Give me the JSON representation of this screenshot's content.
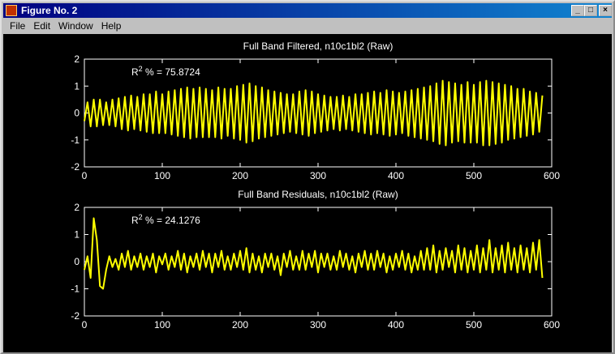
{
  "window": {
    "title": "Figure No. 2",
    "menu": [
      "File",
      "Edit",
      "Window",
      "Help"
    ]
  },
  "chart_data": [
    {
      "type": "line",
      "title": "Full Band Filtered, n10c1bl2 (Raw)",
      "annotation": {
        "base": "R",
        "sup": "2",
        "text": " % = 75.8724"
      },
      "color": "#ffff00",
      "xlim": [
        0,
        600
      ],
      "xticks": [
        0,
        100,
        200,
        300,
        400,
        500,
        600
      ],
      "ylim": [
        -2,
        2
      ],
      "yticks": [
        -2,
        -1,
        0,
        1,
        2
      ],
      "x": [
        0,
        4,
        8,
        12,
        16,
        20,
        24,
        28,
        32,
        36,
        40,
        44,
        48,
        52,
        56,
        60,
        64,
        68,
        72,
        76,
        80,
        84,
        88,
        92,
        96,
        100,
        104,
        108,
        112,
        116,
        120,
        124,
        128,
        132,
        136,
        140,
        144,
        148,
        152,
        156,
        160,
        164,
        168,
        172,
        176,
        180,
        184,
        188,
        192,
        196,
        200,
        204,
        208,
        212,
        216,
        220,
        224,
        228,
        232,
        236,
        240,
        244,
        248,
        252,
        256,
        260,
        264,
        268,
        272,
        276,
        280,
        284,
        288,
        292,
        296,
        300,
        304,
        308,
        312,
        316,
        320,
        324,
        328,
        332,
        336,
        340,
        344,
        348,
        352,
        356,
        360,
        364,
        368,
        372,
        376,
        380,
        384,
        388,
        392,
        396,
        400,
        404,
        408,
        412,
        416,
        420,
        424,
        428,
        432,
        436,
        440,
        444,
        448,
        452,
        456,
        460,
        464,
        468,
        472,
        476,
        480,
        484,
        488,
        492,
        496,
        500,
        504,
        508,
        512,
        516,
        520,
        524,
        528,
        532,
        536,
        540,
        544,
        548,
        552,
        556,
        560,
        564,
        568,
        572,
        576,
        580,
        584,
        588
      ],
      "values": [
        -0.3,
        0.4,
        -0.5,
        0.5,
        -0.5,
        0.5,
        -0.45,
        0.4,
        -0.45,
        0.5,
        -0.5,
        0.55,
        -0.6,
        0.6,
        -0.65,
        0.65,
        -0.6,
        0.6,
        -0.65,
        0.7,
        -0.7,
        0.7,
        -0.75,
        0.8,
        -0.75,
        0.7,
        -0.75,
        0.8,
        -0.8,
        0.85,
        -0.85,
        0.9,
        -0.9,
        0.95,
        -0.95,
        0.9,
        -0.9,
        0.95,
        -0.9,
        0.9,
        -0.9,
        0.85,
        -0.9,
        0.95,
        -0.95,
        0.9,
        -0.85,
        0.9,
        -0.95,
        1.0,
        -1.0,
        1.05,
        -1.1,
        1.1,
        -1.05,
        1.0,
        -0.95,
        0.95,
        -0.9,
        0.85,
        -0.85,
        0.8,
        -0.8,
        0.75,
        -0.75,
        0.7,
        -0.7,
        0.7,
        -0.75,
        0.8,
        -0.8,
        0.85,
        -0.85,
        0.8,
        -0.75,
        0.7,
        -0.7,
        0.65,
        -0.65,
        0.6,
        -0.6,
        0.6,
        -0.65,
        0.65,
        -0.6,
        0.6,
        -0.65,
        0.7,
        -0.7,
        0.7,
        -0.75,
        0.75,
        -0.8,
        0.8,
        -0.75,
        0.75,
        -0.8,
        0.85,
        -0.85,
        0.8,
        -0.8,
        0.75,
        -0.75,
        0.8,
        -0.85,
        0.85,
        -0.9,
        0.9,
        -0.95,
        0.95,
        -1.0,
        1.0,
        -1.05,
        1.1,
        -1.15,
        1.2,
        -1.2,
        1.15,
        -1.1,
        1.1,
        -1.05,
        1.05,
        -1.1,
        1.15,
        -1.1,
        1.05,
        -1.1,
        1.15,
        -1.2,
        1.2,
        -1.2,
        1.15,
        -1.15,
        1.1,
        -1.1,
        1.05,
        -1.0,
        1.0,
        -0.95,
        0.9,
        -0.9,
        0.9,
        -0.85,
        0.8,
        -0.8,
        0.75,
        -0.7,
        0.65
      ]
    },
    {
      "type": "line",
      "title": "Full Band Residuals, n10c1bl2 (Raw)",
      "annotation": {
        "base": "R",
        "sup": "2",
        "text": " % = 24.1276"
      },
      "color": "#ffff00",
      "xlim": [
        0,
        600
      ],
      "xticks": [
        0,
        100,
        200,
        300,
        400,
        500,
        600
      ],
      "ylim": [
        -2,
        2
      ],
      "yticks": [
        -2,
        -1,
        0,
        1,
        2
      ],
      "x": [
        0,
        4,
        8,
        12,
        16,
        20,
        24,
        28,
        32,
        36,
        40,
        44,
        48,
        52,
        56,
        60,
        64,
        68,
        72,
        76,
        80,
        84,
        88,
        92,
        96,
        100,
        104,
        108,
        112,
        116,
        120,
        124,
        128,
        132,
        136,
        140,
        144,
        148,
        152,
        156,
        160,
        164,
        168,
        172,
        176,
        180,
        184,
        188,
        192,
        196,
        200,
        204,
        208,
        212,
        216,
        220,
        224,
        228,
        232,
        236,
        240,
        244,
        248,
        252,
        256,
        260,
        264,
        268,
        272,
        276,
        280,
        284,
        288,
        292,
        296,
        300,
        304,
        308,
        312,
        316,
        320,
        324,
        328,
        332,
        336,
        340,
        344,
        348,
        352,
        356,
        360,
        364,
        368,
        372,
        376,
        380,
        384,
        388,
        392,
        396,
        400,
        404,
        408,
        412,
        416,
        420,
        424,
        428,
        432,
        436,
        440,
        444,
        448,
        452,
        456,
        460,
        464,
        468,
        472,
        476,
        480,
        484,
        488,
        492,
        496,
        500,
        504,
        508,
        512,
        516,
        520,
        524,
        528,
        532,
        536,
        540,
        544,
        548,
        552,
        556,
        560,
        564,
        568,
        572,
        576,
        580,
        584,
        588
      ],
      "values": [
        -0.3,
        0.2,
        -0.6,
        1.6,
        0.8,
        -0.9,
        -1.0,
        -0.3,
        0.2,
        -0.2,
        0.1,
        -0.3,
        0.3,
        -0.2,
        0.4,
        -0.3,
        0.2,
        -0.2,
        0.3,
        -0.3,
        0.2,
        -0.2,
        0.3,
        -0.4,
        0.2,
        -0.1,
        0.3,
        -0.3,
        0.2,
        -0.2,
        0.4,
        -0.3,
        0.3,
        -0.4,
        0.2,
        -0.2,
        0.3,
        -0.3,
        0.4,
        -0.2,
        0.3,
        -0.4,
        0.3,
        -0.2,
        0.4,
        -0.3,
        0.2,
        -0.3,
        0.3,
        -0.2,
        0.4,
        -0.3,
        0.5,
        -0.4,
        0.3,
        -0.3,
        0.2,
        -0.4,
        0.3,
        -0.2,
        0.3,
        -0.3,
        0.2,
        -0.5,
        0.3,
        -0.2,
        0.4,
        -0.3,
        0.2,
        -0.3,
        0.4,
        -0.3,
        0.3,
        -0.2,
        0.4,
        -0.4,
        0.3,
        -0.2,
        0.3,
        -0.3,
        0.2,
        -0.3,
        0.4,
        -0.2,
        0.3,
        -0.3,
        0.2,
        -0.4,
        0.3,
        -0.2,
        0.4,
        -0.3,
        0.3,
        -0.3,
        0.4,
        -0.2,
        0.3,
        -0.4,
        0.2,
        -0.3,
        0.3,
        -0.2,
        0.4,
        -0.3,
        0.3,
        -0.4,
        0.2,
        -0.3,
        0.4,
        -0.3,
        0.5,
        -0.3,
        0.6,
        -0.4,
        0.4,
        -0.3,
        0.5,
        -0.2,
        0.4,
        -0.4,
        0.6,
        -0.3,
        0.5,
        -0.4,
        0.4,
        -0.3,
        0.6,
        -0.4,
        0.5,
        -0.3,
        0.8,
        -0.4,
        0.5,
        -0.3,
        0.6,
        -0.4,
        0.7,
        -0.3,
        0.5,
        -0.4,
        0.6,
        -0.3,
        0.5,
        -0.4,
        0.7,
        -0.3,
        0.8,
        -0.6
      ]
    }
  ]
}
